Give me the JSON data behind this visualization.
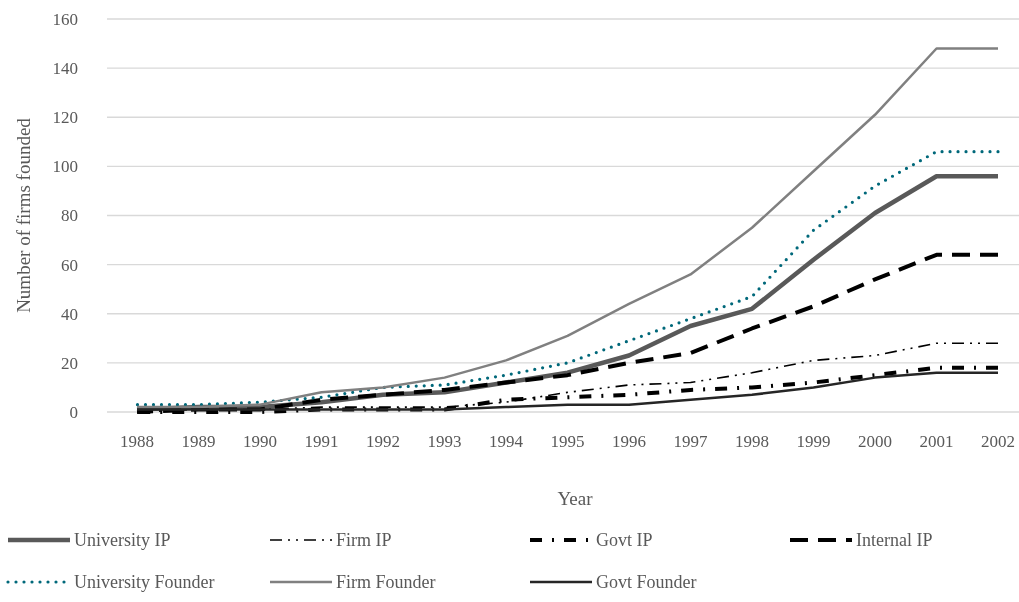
{
  "chart_data": {
    "type": "line",
    "xlabel": "Year",
    "ylabel": "Number of firms founded",
    "categories": [
      "1988",
      "1989",
      "1990",
      "1991",
      "1992",
      "1993",
      "1994",
      "1995",
      "1996",
      "1997",
      "1998",
      "1999",
      "2000",
      "2001",
      "2002"
    ],
    "ylim": [
      0,
      160
    ],
    "yticks": [
      0,
      20,
      40,
      60,
      80,
      100,
      120,
      140,
      160
    ],
    "grid": "y",
    "legend": "bottom",
    "marker": "none",
    "series": [
      {
        "name": "University IP",
        "color": "#595959",
        "line_style": "solid",
        "values": [
          1,
          2,
          2,
          4,
          7,
          8,
          12,
          16,
          23,
          35,
          42,
          62,
          81,
          96,
          96
        ]
      },
      {
        "name": "Firm IP",
        "color": "#000000",
        "line_style": "dashdotdot",
        "values": [
          0,
          1,
          1,
          2,
          2,
          2,
          4,
          8,
          11,
          12,
          16,
          21,
          23,
          28,
          28
        ]
      },
      {
        "name": "Govt IP",
        "color": "#000000",
        "line_style": "dashdot",
        "values": [
          0,
          0,
          0,
          1,
          1,
          1,
          5,
          6,
          7,
          9,
          10,
          12,
          15,
          18,
          18
        ]
      },
      {
        "name": "Internal IP",
        "color": "#000000",
        "line_style": "dashed",
        "values": [
          0,
          1,
          1,
          5,
          7,
          9,
          12,
          15,
          20,
          24,
          34,
          43,
          54,
          64,
          64
        ]
      },
      {
        "name": "University Founder",
        "color": "#00687a",
        "line_style": "dotted",
        "values": [
          3,
          3,
          4,
          6,
          10,
          11,
          15,
          20,
          29,
          38,
          47,
          74,
          92,
          106,
          106
        ]
      },
      {
        "name": "Firm Founder",
        "color": "#808080",
        "line_style": "solid",
        "values": [
          2,
          2,
          3,
          8,
          10,
          14,
          21,
          31,
          44,
          56,
          75,
          98,
          121,
          148,
          148
        ]
      },
      {
        "name": "Govt Founder",
        "color": "#262626",
        "line_style": "solid",
        "values": [
          1,
          1,
          1,
          1,
          1,
          1,
          2,
          3,
          3,
          5,
          7,
          10,
          14,
          16,
          16
        ]
      }
    ]
  }
}
